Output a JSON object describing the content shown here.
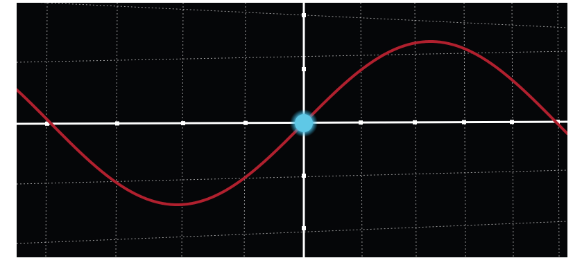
{
  "graph": {
    "background_color": "#050608",
    "curve_color": "#b0202e",
    "axis_color": "#ffffff",
    "grid_color": "#cfcfcf",
    "marker_color": "#5fc8e6",
    "marker_glow_color": "#2aa9d6",
    "curve_type": "sine",
    "grid": true,
    "marker_position": "origin"
  }
}
